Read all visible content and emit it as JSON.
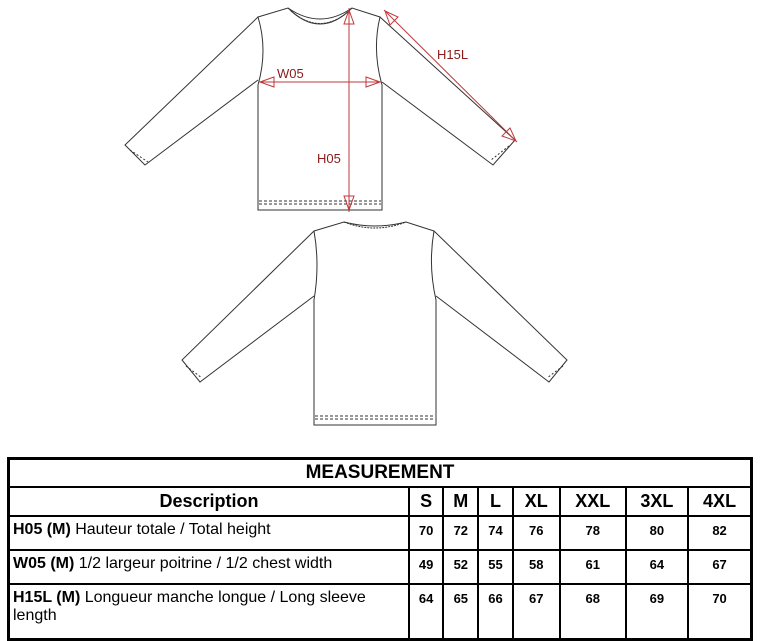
{
  "diagram": {
    "labels": {
      "w05": "W05",
      "h05": "H05",
      "h15l": "H15L"
    },
    "colors": {
      "measure_line": "#c0393b",
      "label": "#8b1a1a",
      "outline": "#333333"
    }
  },
  "table": {
    "title": "MEASUREMENT",
    "header": {
      "description": "Description",
      "sizes": [
        "S",
        "M",
        "L",
        "XL",
        "XXL",
        "3XL",
        "4XL"
      ]
    },
    "rows": [
      {
        "code": "H05 (M)",
        "text": " Hauteur totale / Total height",
        "values": [
          "70",
          "72",
          "74",
          "76",
          "78",
          "80",
          "82"
        ]
      },
      {
        "code": "W05 (M)",
        "text": " 1/2 largeur poitrine / 1/2 chest width",
        "values": [
          "49",
          "52",
          "55",
          "58",
          "61",
          "64",
          "67"
        ]
      },
      {
        "code": "H15L (M)",
        "text": " Longueur manche longue / Long sleeve length",
        "values": [
          "64",
          "65",
          "66",
          "67",
          "68",
          "69",
          "70"
        ]
      }
    ]
  }
}
